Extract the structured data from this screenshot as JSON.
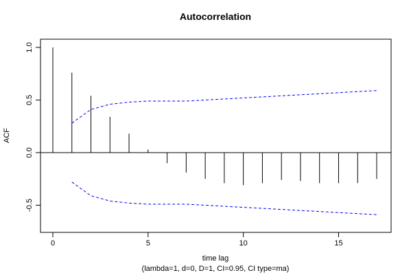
{
  "chart_data": {
    "type": "bar",
    "title": "Autocorrelation",
    "xlabel": "time lag",
    "subtitle": "(lambda=1, d=0, D=1, CI=0.95, CI type=ma)",
    "ylabel": "ACF",
    "xlim": [
      0,
      17
    ],
    "ylim": [
      -0.6,
      1.0
    ],
    "x_ticks": [
      0,
      5,
      10,
      15
    ],
    "y_ticks": [
      -0.5,
      0.0,
      0.5,
      1.0
    ],
    "x_tick_labels": [
      "0",
      "5",
      "10",
      "15"
    ],
    "y_tick_labels": [
      "-0.5",
      "0.0",
      "0.5",
      "1.0"
    ],
    "lags": [
      0,
      1,
      2,
      3,
      4,
      5,
      6,
      7,
      8,
      9,
      10,
      11,
      12,
      13,
      14,
      15,
      16,
      17
    ],
    "acf": [
      1.0,
      0.76,
      0.54,
      0.34,
      0.18,
      0.03,
      -0.1,
      -0.19,
      -0.25,
      -0.29,
      -0.31,
      -0.29,
      -0.26,
      -0.27,
      -0.29,
      -0.29,
      -0.29,
      -0.25
    ],
    "ci_lags": [
      1,
      2,
      3,
      4,
      5,
      6,
      7,
      8,
      9,
      10,
      11,
      12,
      13,
      14,
      15,
      16,
      17
    ],
    "ci_upper": [
      0.28,
      0.41,
      0.46,
      0.48,
      0.49,
      0.49,
      0.49,
      0.5,
      0.51,
      0.52,
      0.53,
      0.54,
      0.55,
      0.56,
      0.57,
      0.58,
      0.59
    ],
    "ci_lower": [
      -0.28,
      -0.41,
      -0.46,
      -0.48,
      -0.49,
      -0.49,
      -0.49,
      -0.5,
      -0.51,
      -0.52,
      -0.53,
      -0.54,
      -0.55,
      -0.56,
      -0.57,
      -0.58,
      -0.59
    ],
    "colors": {
      "acf": "#000000",
      "ci": "#0000ff",
      "zero_line": "#000000"
    },
    "grid": false
  }
}
